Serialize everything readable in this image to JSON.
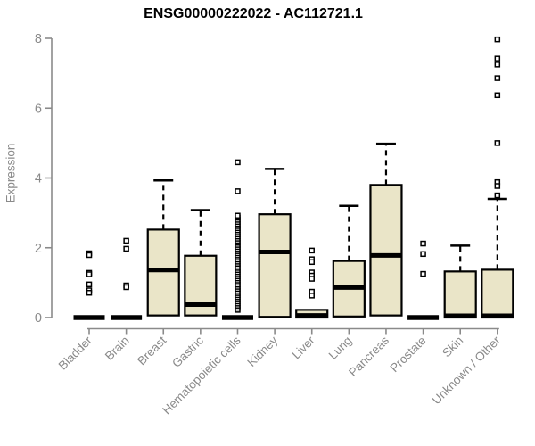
{
  "chart_data": {
    "type": "boxplot",
    "title": "ENSG00000222022 - AC112721.1",
    "ylabel": "Expression",
    "xlabel": "",
    "ylim": [
      0,
      8
    ],
    "yticks": [
      0,
      2,
      4,
      6,
      8
    ],
    "grid": false,
    "legend": "none",
    "colors": {
      "box_fill": "#EAE5C8",
      "box_border": "#000000",
      "median": "#000000",
      "whisker": "#000000",
      "outlier_stroke": "#000000",
      "outlier_fill": "#ffffff",
      "axis": "#8a8a8a",
      "tick_text": "#8a8a8a",
      "title_text": "#000000",
      "background": "#ffffff"
    },
    "categories": [
      "Bladder",
      "Brain",
      "Breast",
      "Gastric",
      "Hematopoietic cells",
      "Kidney",
      "Liver",
      "Lung",
      "Pancreas",
      "Prostate",
      "Skin",
      "Unknown / Other"
    ],
    "boxes": [
      {
        "category": "Bladder",
        "q1": 0,
        "median": 0,
        "q3": 0,
        "whisker_high": null,
        "outliers": [
          1.84,
          1.79,
          1.28,
          1.24,
          0.95,
          0.78,
          0.71
        ]
      },
      {
        "category": "Brain",
        "q1": 0,
        "median": 0,
        "q3": 0,
        "whisker_high": null,
        "outliers": [
          2.2,
          1.97,
          0.92,
          0.87
        ]
      },
      {
        "category": "Breast",
        "q1": 0.06,
        "median": 1.36,
        "q3": 2.52,
        "whisker_high": 3.93,
        "outliers": []
      },
      {
        "category": "Gastric",
        "q1": 0.06,
        "median": 0.37,
        "q3": 1.77,
        "whisker_high": 3.08,
        "outliers": []
      },
      {
        "category": "Hematopoietic cells",
        "q1": 0,
        "median": 0,
        "q3": 0,
        "whisker_high": null,
        "outliers": [
          4.45,
          3.62
        ],
        "outlier_band": {
          "min": 0.22,
          "max": 2.92
        }
      },
      {
        "category": "Kidney",
        "q1": 0.02,
        "median": 1.88,
        "q3": 2.96,
        "whisker_high": 4.26,
        "outliers": []
      },
      {
        "category": "Liver",
        "q1": 0,
        "median": 0.06,
        "q3": 0.22,
        "whisker_high": null,
        "outliers": [
          1.92,
          1.67,
          1.59,
          1.29,
          1.2,
          1.11,
          0.74,
          0.63
        ]
      },
      {
        "category": "Lung",
        "q1": 0.03,
        "median": 0.86,
        "q3": 1.62,
        "whisker_high": 3.2,
        "outliers": []
      },
      {
        "category": "Pancreas",
        "q1": 0.06,
        "median": 1.78,
        "q3": 3.8,
        "whisker_high": 4.98,
        "outliers": []
      },
      {
        "category": "Prostate",
        "q1": 0,
        "median": 0,
        "q3": 0,
        "whisker_high": null,
        "outliers": [
          2.12,
          1.82,
          1.25
        ]
      },
      {
        "category": "Skin",
        "q1": 0,
        "median": 0.05,
        "q3": 1.32,
        "whisker_high": 2.06,
        "outliers": []
      },
      {
        "category": "Unknown / Other",
        "q1": 0,
        "median": 0.05,
        "q3": 1.37,
        "whisker_high": 3.4,
        "outliers": [
          7.97,
          7.42,
          7.25,
          6.86,
          6.37,
          5.0,
          3.88,
          3.77,
          3.5
        ]
      }
    ]
  }
}
